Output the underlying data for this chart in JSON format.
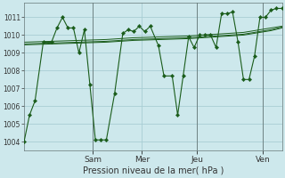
{
  "title": "Pression niveau de la mer( hPa )",
  "bg_color": "#cde8ec",
  "grid_color": "#a8cdd4",
  "line_color": "#1a5c1a",
  "ylim": [
    1003.5,
    1011.8
  ],
  "yticks": [
    1004,
    1005,
    1006,
    1007,
    1008,
    1009,
    1010,
    1011
  ],
  "xtick_labels": [
    "Sam",
    "Mer",
    "Jeu",
    "Ven"
  ],
  "xtick_pos": [
    12.5,
    21.5,
    31.5,
    43.5
  ],
  "xvline_pos": [
    12.5,
    31.5,
    43.5
  ],
  "xlim": [
    0,
    47
  ],
  "main_x": [
    0,
    1,
    2,
    3.5,
    5,
    6,
    7,
    8,
    9,
    10,
    11,
    12,
    13,
    14,
    15,
    16.5,
    18,
    19,
    20,
    21,
    22,
    23,
    24.5,
    25.5,
    27,
    28,
    29,
    30,
    31,
    32,
    33,
    34,
    35,
    36,
    37,
    38,
    39,
    40,
    41,
    42,
    43,
    44,
    45,
    46,
    47
  ],
  "main_y": [
    1004.0,
    1005.5,
    1006.3,
    1009.6,
    1009.6,
    1010.4,
    1011.0,
    1010.4,
    1010.4,
    1009.0,
    1010.3,
    1007.2,
    1004.1,
    1004.1,
    1004.1,
    1006.7,
    1010.1,
    1010.3,
    1010.2,
    1010.5,
    1010.2,
    1010.5,
    1009.4,
    1007.7,
    1007.7,
    1005.5,
    1007.7,
    1009.9,
    1009.3,
    1010.0,
    1010.0,
    1010.0,
    1009.3,
    1011.2,
    1011.2,
    1011.3,
    1009.6,
    1007.5,
    1007.5,
    1008.8,
    1011.0,
    1011.0,
    1011.4,
    1011.5,
    1011.5
  ],
  "trend1_x": [
    0,
    5,
    10,
    15,
    20,
    25,
    30,
    35,
    40,
    45,
    47
  ],
  "trend1_y": [
    1009.6,
    1009.65,
    1009.7,
    1009.75,
    1009.85,
    1009.9,
    1009.95,
    1010.05,
    1010.15,
    1010.4,
    1010.5
  ],
  "trend2_x": [
    0,
    5,
    10,
    15,
    20,
    25,
    30,
    35,
    40,
    45,
    47
  ],
  "trend2_y": [
    1009.5,
    1009.55,
    1009.6,
    1009.65,
    1009.75,
    1009.8,
    1009.85,
    1009.95,
    1010.05,
    1010.3,
    1010.45
  ],
  "trend3_x": [
    0,
    5,
    10,
    15,
    20,
    25,
    30,
    35,
    40,
    45,
    47
  ],
  "trend3_y": [
    1009.45,
    1009.5,
    1009.55,
    1009.6,
    1009.7,
    1009.75,
    1009.8,
    1009.9,
    1010.0,
    1010.25,
    1010.4
  ],
  "ytick_fontsize": 5.5,
  "xtick_fontsize": 6.5,
  "title_fontsize": 7.0
}
